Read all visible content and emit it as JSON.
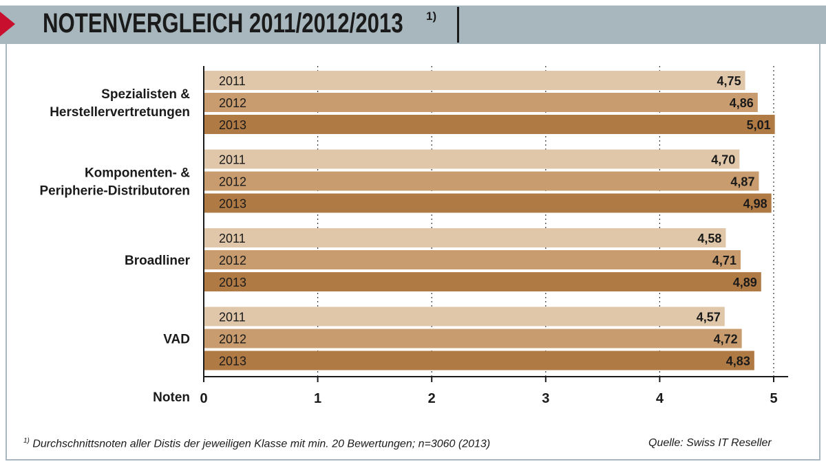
{
  "header": {
    "title": "NOTENVERGLEICH 2011/2012/2013",
    "title_note": "1)"
  },
  "chart_data": {
    "type": "bar",
    "orientation": "horizontal",
    "title": "NOTENVERGLEICH 2011/2012/2013",
    "xlabel": "Noten",
    "xlim": [
      0,
      5
    ],
    "xticks": [
      "0",
      "1",
      "2",
      "3",
      "4",
      "5"
    ],
    "grid": "vertical dotted",
    "categories": [
      [
        "Spezialisten &",
        "Herstellervertretungen"
      ],
      [
        "Komponenten- &",
        "Peripherie-Distributoren"
      ],
      [
        "Broadliner"
      ],
      [
        "VAD"
      ]
    ],
    "series": [
      {
        "name": "2011",
        "color": "#e0c7aa",
        "values": [
          4.75,
          4.7,
          4.58,
          4.57
        ],
        "labels": [
          "4,75",
          "4,70",
          "4,58",
          "4,57"
        ]
      },
      {
        "name": "2012",
        "color": "#c89c6e",
        "values": [
          4.86,
          4.87,
          4.71,
          4.72
        ],
        "labels": [
          "4,86",
          "4,87",
          "4,71",
          "4,72"
        ]
      },
      {
        "name": "2013",
        "color": "#b07a45",
        "values": [
          5.01,
          4.98,
          4.89,
          4.83
        ],
        "labels": [
          "5,01",
          "4,98",
          "4,89",
          "4,83"
        ]
      }
    ]
  },
  "footnote": {
    "marker": "1)",
    "text": " Durchschnittsnoten aller Distis der jeweiligen Klasse mit min. 20 Bewertungen; n=3060 (2013)"
  },
  "source": "Quelle: Swiss IT Reseller",
  "colors": {
    "header_bg": "#a7b7bd",
    "accent_arrow": "#c8102e"
  }
}
